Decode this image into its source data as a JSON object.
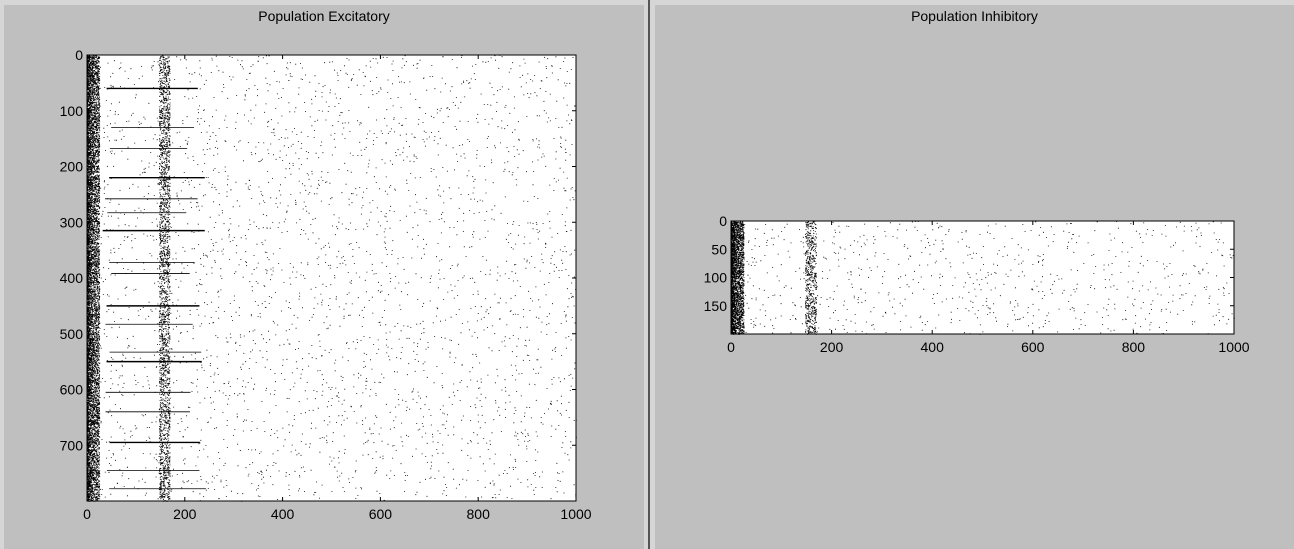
{
  "chart_data": [
    {
      "type": "raster",
      "title": "Population Excitatory",
      "xlim": [
        0,
        1000
      ],
      "ylim": [
        800,
        0
      ],
      "xticks": [
        0,
        200,
        400,
        600,
        800,
        1000
      ],
      "yticks": [
        0,
        100,
        200,
        300,
        400,
        500,
        600,
        700
      ],
      "xlabel": "",
      "ylabel": "",
      "grid": false,
      "colors": {
        "spike": "#000000",
        "background": "#ffffff"
      },
      "n_neurons": 800,
      "features": {
        "dense_onset_window": [
          0,
          25
        ],
        "vertical_band_center": 158,
        "horizontal_burst_rows": [
          60,
          130,
          168,
          220,
          258,
          283,
          315,
          372,
          392,
          450,
          483,
          533,
          550,
          605,
          640,
          695,
          745,
          778
        ],
        "horizontal_burst_span": [
          30,
          240
        ]
      }
    },
    {
      "type": "raster",
      "title": "Population Inhibitory",
      "xlim": [
        0,
        1000
      ],
      "ylim": [
        200,
        0
      ],
      "xticks": [
        0,
        200,
        400,
        600,
        800,
        1000
      ],
      "yticks": [
        0,
        50,
        100,
        150
      ],
      "xlabel": "",
      "ylabel": "",
      "grid": false,
      "colors": {
        "spike": "#000000",
        "background": "#ffffff"
      },
      "n_neurons": 200,
      "features": {
        "dense_onset_window": [
          0,
          25
        ],
        "vertical_band_center": 158
      }
    }
  ]
}
